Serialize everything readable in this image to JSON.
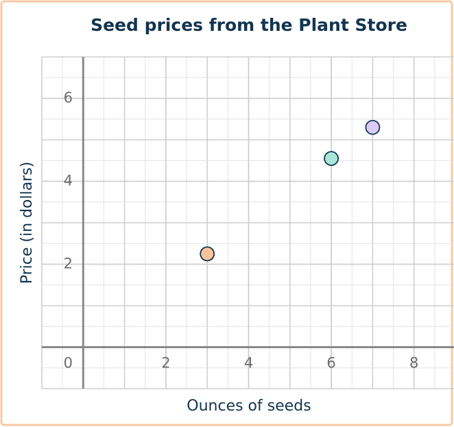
{
  "chart_data": {
    "type": "scatter",
    "title": "Seed prices from the Plant Store",
    "x_label": "Ounces of seeds",
    "y_label": "Price (in dollars)",
    "series": [
      {
        "color": "#f9c49a",
        "x": [
          3
        ],
        "values": [
          2.25
        ]
      },
      {
        "color": "#a8e6d9",
        "x": [
          6
        ],
        "values": [
          4.55
        ]
      },
      {
        "color": "#d9ccf7",
        "x": [
          7
        ],
        "values": [
          5.3
        ]
      }
    ],
    "xlim": [
      -1,
      9
    ],
    "ylim": [
      -1,
      7
    ],
    "xticks": [
      0,
      2,
      4,
      6,
      8
    ],
    "yticks": [
      2,
      4,
      6
    ],
    "grid": true
  }
}
